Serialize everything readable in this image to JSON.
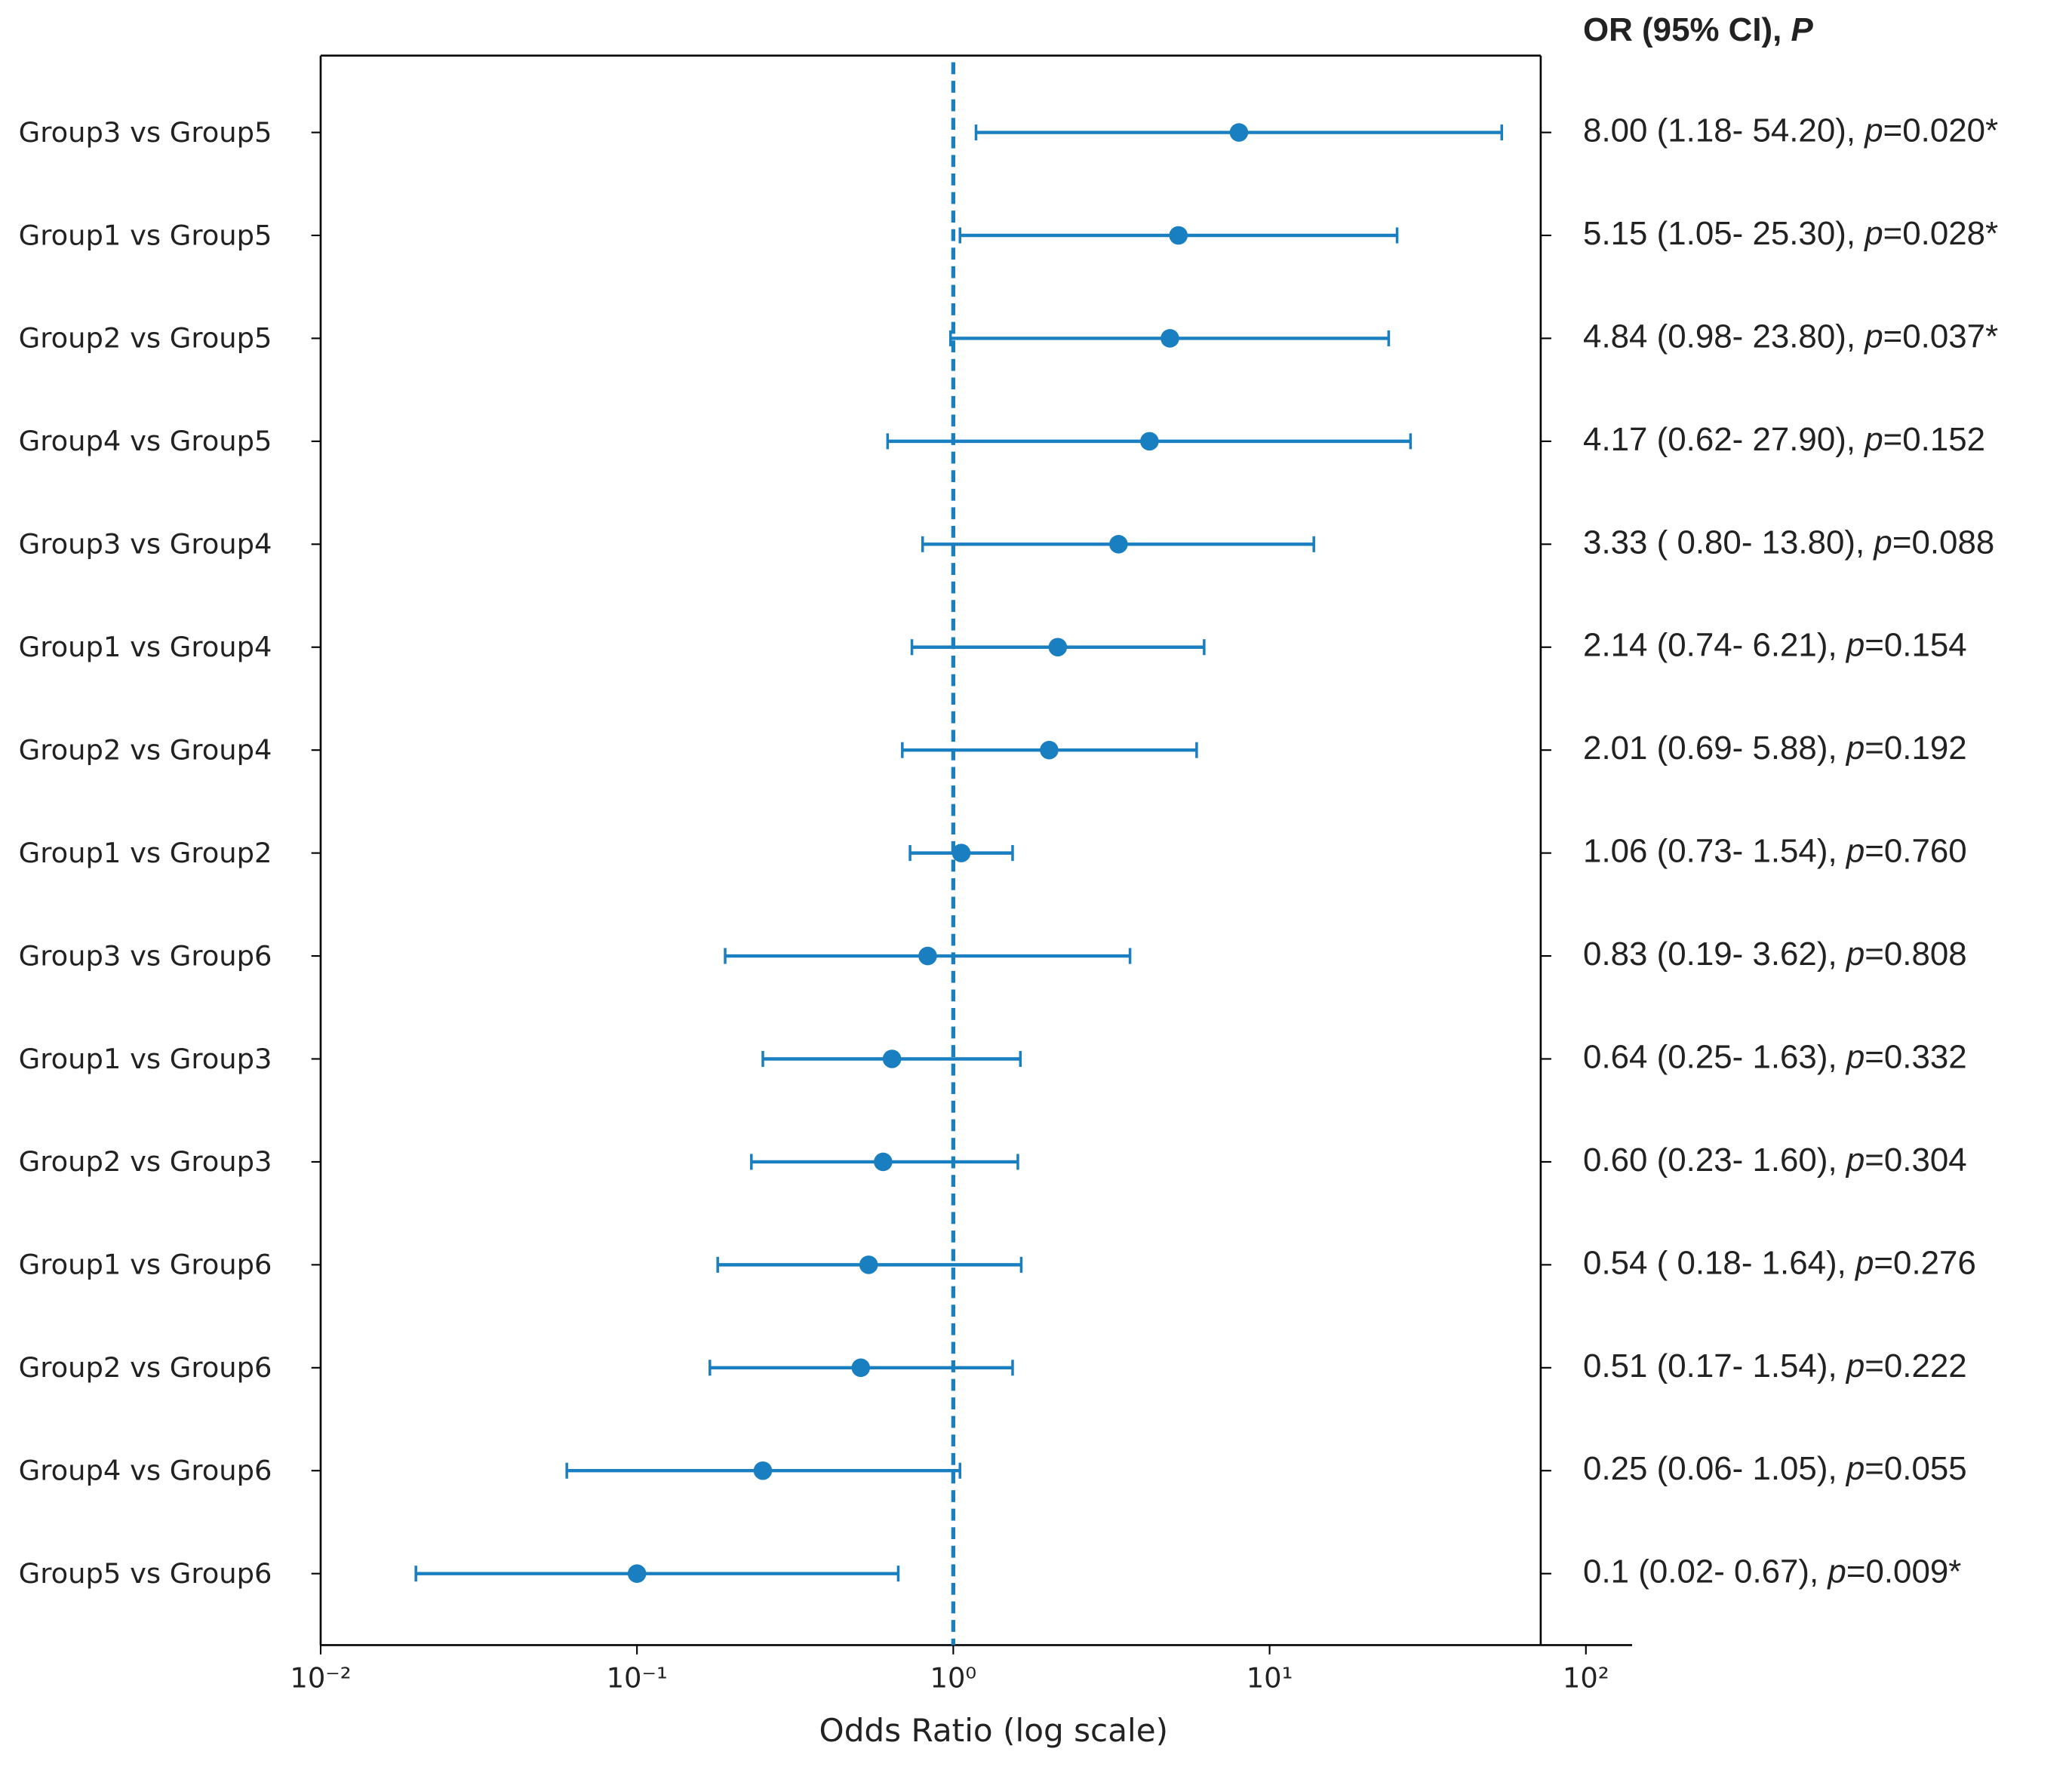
{
  "chart_data": {
    "type": "forest",
    "x_label": "Odds Ratio (log scale)",
    "header": [
      "OR (95% CI), ",
      "P"
    ],
    "categories": [
      "Group3 vs Group5",
      "Group1 vs Group5",
      "Group2 vs Group5",
      "Group4 vs Group5",
      "Group3 vs Group4",
      "Group1 vs Group4",
      "Group2 vs Group4",
      "Group1 vs Group2",
      "Group3 vs Group6",
      "Group1 vs Group3",
      "Group2 vs Group3",
      "Group1 vs Group6",
      "Group2 vs Group6",
      "Group4 vs Group6",
      "Group5 vs Group6"
    ],
    "values": [
      8.0,
      5.15,
      4.84,
      4.17,
      3.33,
      2.14,
      2.01,
      1.06,
      0.83,
      0.64,
      0.6,
      0.54,
      0.51,
      0.25,
      0.1
    ],
    "lower": [
      1.18,
      1.05,
      0.98,
      0.62,
      0.8,
      0.74,
      0.69,
      0.73,
      0.19,
      0.25,
      0.23,
      0.18,
      0.17,
      0.06,
      0.02
    ],
    "upper": [
      54.2,
      25.3,
      23.8,
      27.9,
      13.8,
      6.21,
      5.88,
      1.54,
      3.62,
      1.63,
      1.6,
      1.64,
      1.54,
      1.05,
      0.67
    ],
    "ci_labels": [
      [
        "8.00 (1.18- 54.20), ",
        "p",
        "=0.020*"
      ],
      [
        "5.15 (1.05- 25.30), ",
        "p",
        "=0.028*"
      ],
      [
        "4.84 (0.98- 23.80), ",
        "p",
        "=0.037*"
      ],
      [
        "4.17 (0.62- 27.90), ",
        "p",
        "=0.152"
      ],
      [
        "3.33 ( 0.80- 13.80), ",
        "p",
        "=0.088"
      ],
      [
        "2.14 (0.74- 6.21), ",
        "p",
        "=0.154"
      ],
      [
        "2.01 (0.69- 5.88), ",
        "p",
        "=0.192"
      ],
      [
        "1.06 (0.73- 1.54), ",
        "p",
        "=0.760"
      ],
      [
        "0.83 (0.19- 3.62), ",
        "p",
        "=0.808"
      ],
      [
        "0.64 (0.25- 1.63), ",
        "p",
        "=0.332"
      ],
      [
        "0.60 (0.23- 1.60), ",
        "p",
        "=0.304"
      ],
      [
        "0.54 ( 0.18- 1.64), ",
        "p",
        "=0.276"
      ],
      [
        "0.51 (0.17- 1.54), ",
        "p",
        "=0.222"
      ],
      [
        "0.25 (0.06- 1.05), ",
        "p",
        "=0.055"
      ],
      [
        "0.1 (0.02- 0.67), ",
        "p",
        "=0.009*"
      ]
    ],
    "color": "#1a7fc1",
    "log_x": true,
    "xlim": [
      0.01,
      140
    ],
    "xticks": [
      {
        "value": 0.01,
        "label": "10⁻²"
      },
      {
        "value": 0.1,
        "label": "10⁻¹"
      },
      {
        "value": 1,
        "label": "10⁰"
      },
      {
        "value": 10,
        "label": "10¹"
      },
      {
        "value": 100,
        "label": "10²"
      }
    ],
    "ref_line": 1
  }
}
